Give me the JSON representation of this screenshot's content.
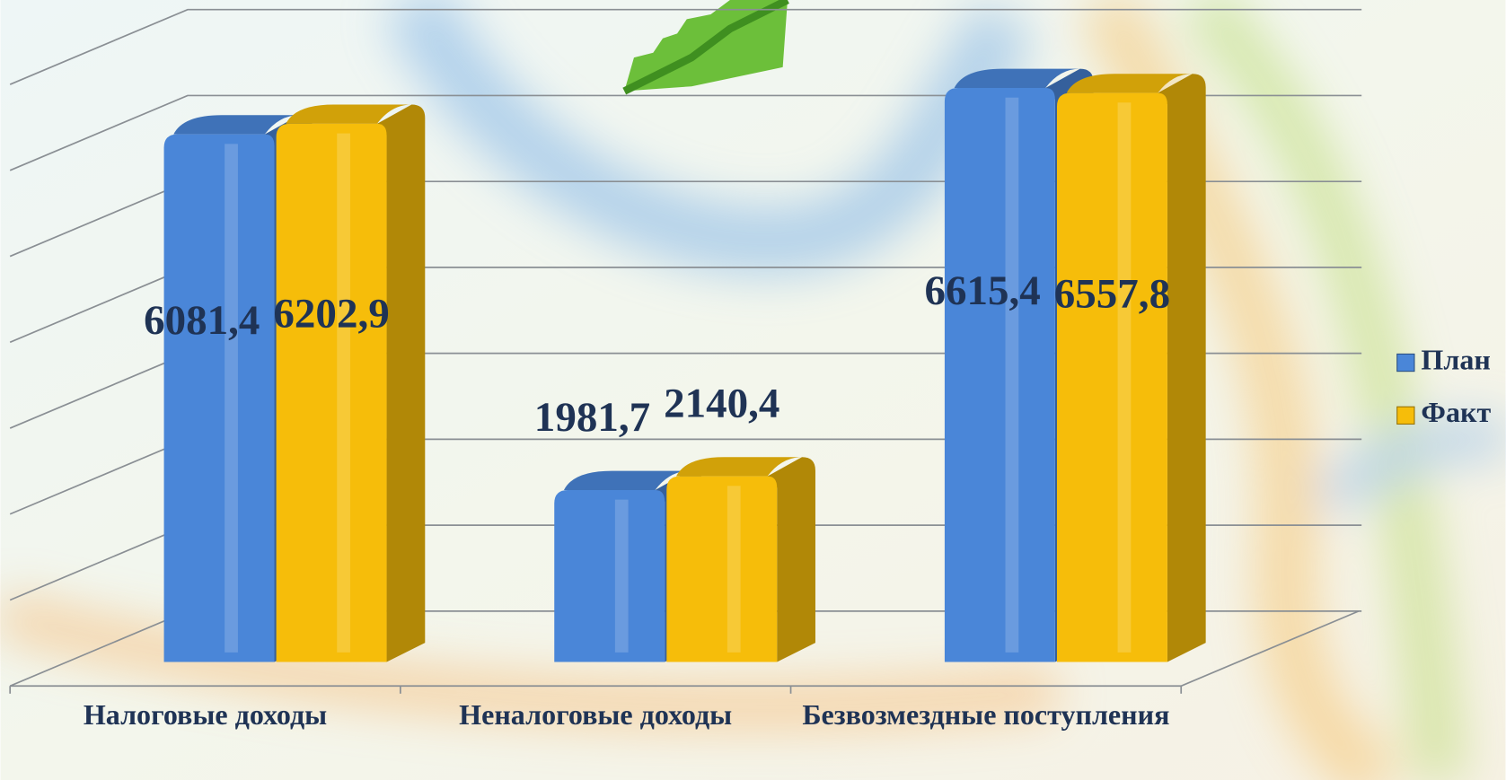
{
  "chart_data": {
    "type": "bar3d",
    "categories": [
      "Налоговые доходы",
      "Неналоговые доходы",
      "Безвозмездные поступления"
    ],
    "series": [
      {
        "name": "План",
        "color": "#4a86d8",
        "values": [
          6081.4,
          1981.7,
          6615.4
        ],
        "value_labels": [
          "6081,4",
          "1981,7",
          "6615,4"
        ]
      },
      {
        "name": "Факт",
        "color": "#f6bd0a",
        "values": [
          6202.9,
          2140.4,
          6557.8
        ],
        "value_labels": [
          "6202,9",
          "2140,4",
          "6557,8"
        ]
      }
    ],
    "ylim": [
      0,
      7000
    ],
    "yticks": [
      0,
      1000,
      2000,
      3000,
      4000,
      5000,
      6000,
      7000
    ],
    "grid": true
  }
}
